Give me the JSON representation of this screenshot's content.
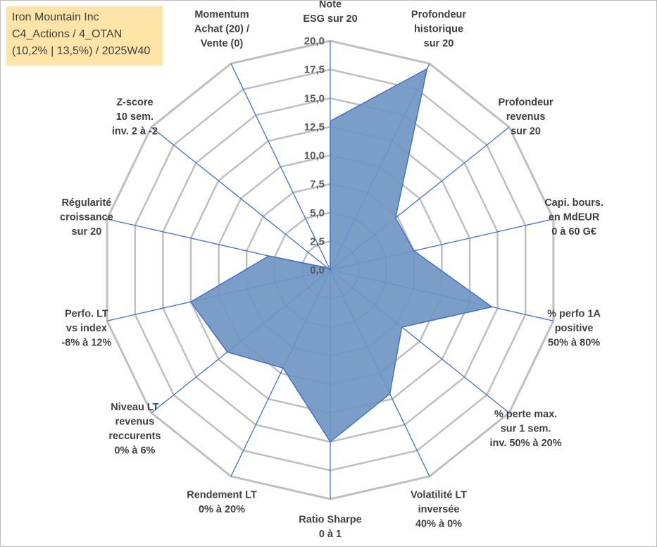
{
  "info": {
    "company": "Iron Mountain Inc",
    "portfolio": "C4_Actions / 4_OTAN",
    "summary": "(10,2% | 13,5%) / 2025W40"
  },
  "colors": {
    "fill": "#7096c4",
    "stroke": "#4472c4",
    "grid": "#bfbfbf",
    "info_bg": "#ffe4a8",
    "text": "#404040"
  },
  "chart_data": {
    "type": "radar",
    "title": "",
    "rmin": 0,
    "rmax": 20,
    "ticks": [
      "0,0",
      "2,5",
      "5,0",
      "7,5",
      "10,0",
      "12,5",
      "15,0",
      "17,5",
      "20,0"
    ],
    "categories": [
      [
        "Note",
        "ESG sur 20"
      ],
      [
        "Profondeur",
        "historique",
        "sur 20"
      ],
      [
        "Profondeur",
        "revenus",
        "sur 20"
      ],
      [
        "Capi. bours.",
        "en MdEUR",
        "0 à 60 G€"
      ],
      [
        "% perfo 1A",
        "positive",
        "50% à 80%"
      ],
      [
        "% perte max.",
        "sur 1 sem.",
        "inv. 50% à 20%"
      ],
      [
        "Volatilité LT",
        "inversée",
        "40% à 0%"
      ],
      [
        "Ratio Sharpe",
        "0 à 1"
      ],
      [
        "Rendement LT",
        "0% à 20%"
      ],
      [
        "Niveau LT",
        "revenus",
        "reccurents",
        "0% à 6%"
      ],
      [
        "Perfo. LT",
        "vs index",
        "-8% à 12%"
      ],
      [
        "Régularité",
        "croissance",
        "sur 20"
      ],
      [
        "Z-score",
        "10 sem.",
        "inv. 2 à -2"
      ],
      [
        "Momentum",
        "Achat (20) /",
        "Vente (0)"
      ]
    ],
    "series": [
      {
        "name": "Iron Mountain Inc",
        "values": [
          13.0,
          19.5,
          7.3,
          7.5,
          14.5,
          8.0,
          12.0,
          15.0,
          9.5,
          11.5,
          12.5,
          5.5,
          0.3,
          0.0
        ]
      }
    ]
  }
}
